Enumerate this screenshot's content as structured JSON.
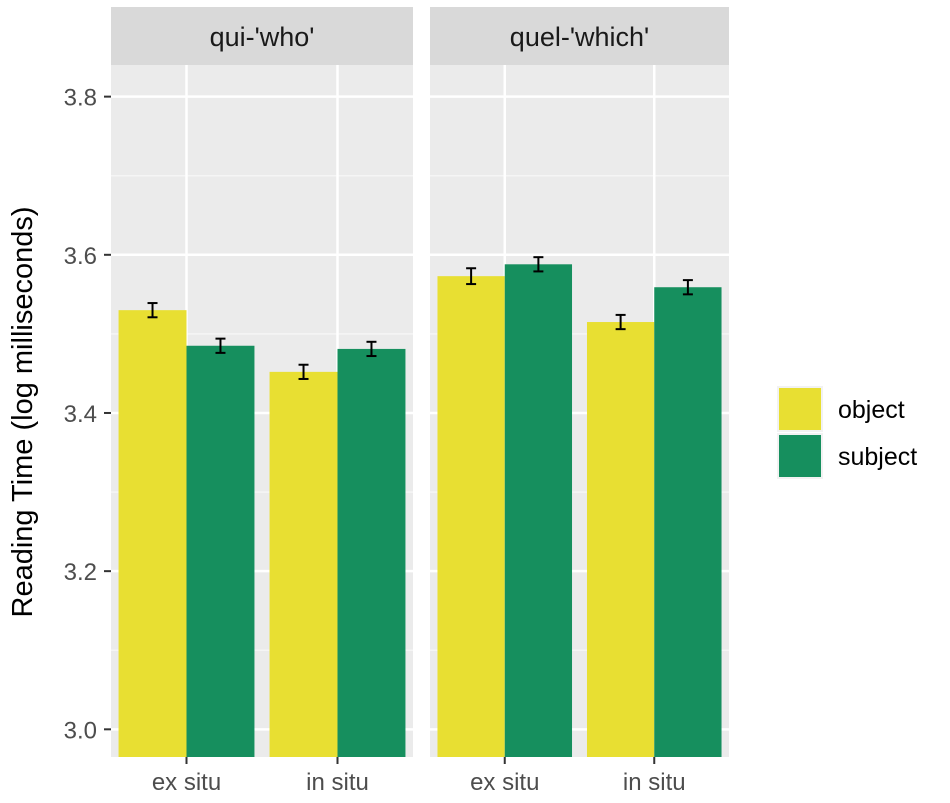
{
  "chart_data": {
    "type": "bar",
    "facets": [
      {
        "label": "qui-'who'"
      },
      {
        "label": "quel-'which'"
      }
    ],
    "categories": [
      "ex situ",
      "in situ"
    ],
    "series": [
      {
        "name": "object",
        "color": "#E8DF32"
      },
      {
        "name": "subject",
        "color": "#168F5E"
      }
    ],
    "values": [
      {
        "facet": "qui-'who'",
        "category": "ex situ",
        "series": "object",
        "value": 3.53,
        "error": 0.009
      },
      {
        "facet": "qui-'who'",
        "category": "ex situ",
        "series": "subject",
        "value": 3.485,
        "error": 0.009
      },
      {
        "facet": "qui-'who'",
        "category": "in situ",
        "series": "object",
        "value": 3.452,
        "error": 0.009
      },
      {
        "facet": "qui-'who'",
        "category": "in situ",
        "series": "subject",
        "value": 3.481,
        "error": 0.009
      },
      {
        "facet": "quel-'which'",
        "category": "ex situ",
        "series": "object",
        "value": 3.573,
        "error": 0.01
      },
      {
        "facet": "quel-'which'",
        "category": "ex situ",
        "series": "subject",
        "value": 3.588,
        "error": 0.009
      },
      {
        "facet": "quel-'which'",
        "category": "in situ",
        "series": "object",
        "value": 3.515,
        "error": 0.009
      },
      {
        "facet": "quel-'which'",
        "category": "in situ",
        "series": "subject",
        "value": 3.559,
        "error": 0.009
      }
    ],
    "ylabel": "Reading Time (log milliseconds)",
    "xlabel": "",
    "ylim": [
      2.965,
      3.84
    ],
    "yticks": [
      3.0,
      3.2,
      3.4,
      3.6,
      3.8
    ],
    "ytick_labels": [
      "3.0",
      "3.2",
      "3.4",
      "3.6",
      "3.8"
    ],
    "grid": true,
    "legend": {
      "position": "right",
      "title": ""
    }
  }
}
